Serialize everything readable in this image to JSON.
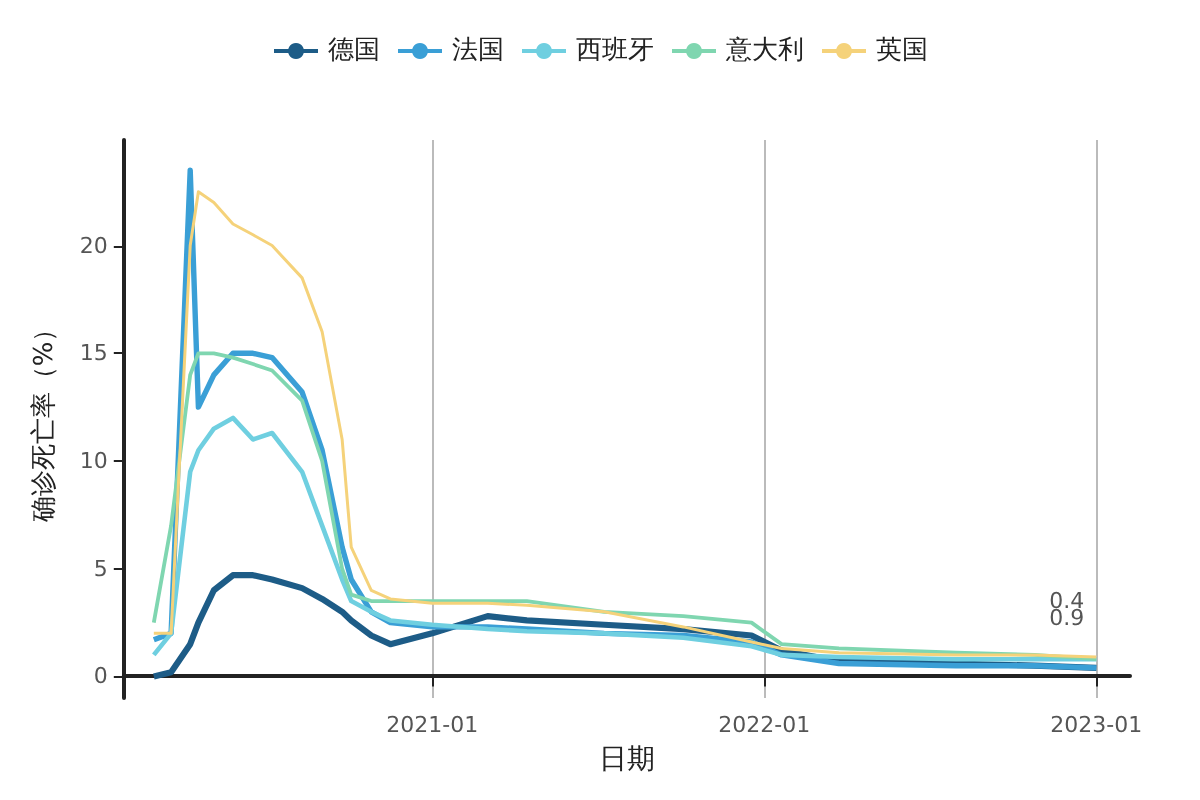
{
  "chart_data": {
    "type": "line",
    "xlabel": "日期",
    "ylabel": "确诊死亡率（%）",
    "x": [
      "2020-03-01",
      "2020-03-20",
      "2020-04-10",
      "2020-04-19",
      "2020-05-06",
      "2020-05-27",
      "2020-06-18",
      "2020-07-09",
      "2020-08-11",
      "2020-09-02",
      "2020-09-24",
      "2020-10-04",
      "2020-10-26",
      "2020-11-16",
      "2021-01-01",
      "2021-03-03",
      "2021-04-15",
      "2021-07-09",
      "2021-10-04",
      "2021-12-18",
      "2022-01-20",
      "2022-03-24",
      "2022-07-31",
      "2022-10-25",
      "2023-01-01"
    ],
    "series": [
      {
        "name": "德国",
        "color": "#1d5c87",
        "values": [
          0,
          0.2,
          1.5,
          2.5,
          4.0,
          4.7,
          4.7,
          4.5,
          4.1,
          3.6,
          3.0,
          2.6,
          1.9,
          1.5,
          2.0,
          2.8,
          2.6,
          2.4,
          2.2,
          1.9,
          1.2,
          0.7,
          0.6,
          0.5,
          0.4
        ]
      },
      {
        "name": "法国",
        "color": "#3a9fd6",
        "values": [
          1.7,
          2.0,
          23.5,
          12.5,
          14,
          15,
          15,
          14.8,
          13.2,
          10.5,
          6,
          4.5,
          3,
          2.5,
          2.3,
          2.3,
          2.2,
          2.0,
          1.9,
          1.6,
          1.0,
          0.6,
          0.5,
          0.5,
          0.4
        ]
      },
      {
        "name": "西班牙",
        "color": "#6fcfe0",
        "values": [
          1.0,
          2.0,
          9.5,
          10.5,
          11.5,
          12,
          11,
          11.3,
          9.5,
          7,
          4.5,
          3.5,
          3,
          2.6,
          2.4,
          2.2,
          2.1,
          2.0,
          1.8,
          1.4,
          1.0,
          0.9,
          0.8,
          0.8,
          0.8
        ]
      },
      {
        "name": "意大利",
        "color": "#7fd6b0",
        "values": [
          2.5,
          7,
          14,
          15,
          15,
          14.8,
          14.5,
          14.2,
          12.8,
          10,
          5,
          3.8,
          3.5,
          3.5,
          3.5,
          3.5,
          3.5,
          3.0,
          2.8,
          2.5,
          1.5,
          1.3,
          1.1,
          1.0,
          0.8
        ]
      },
      {
        "name": "英国",
        "color": "#f5d27a",
        "values": [
          2.0,
          2.0,
          20,
          22.5,
          22,
          21,
          20.5,
          20,
          18.5,
          16,
          11,
          6,
          4,
          3.6,
          3.4,
          3.4,
          3.3,
          3.0,
          2.3,
          1.6,
          1.3,
          1.1,
          1.0,
          1.0,
          0.9
        ]
      }
    ],
    "xlim": [
      "2020-01-28",
      "2023-02-07"
    ],
    "xticks": [
      "2021-01",
      "2022-01",
      "2023-01"
    ],
    "ylim": [
      -1,
      24.9
    ],
    "yticks": [
      0,
      5,
      10,
      15,
      20
    ],
    "grid": "x",
    "legend": "top",
    "annotations": [
      {
        "text": "0.9",
        "x": "2023-01-01",
        "y": 0.9
      },
      {
        "text": "0.4",
        "x": "2023-01-01",
        "y": 0.4
      }
    ]
  }
}
